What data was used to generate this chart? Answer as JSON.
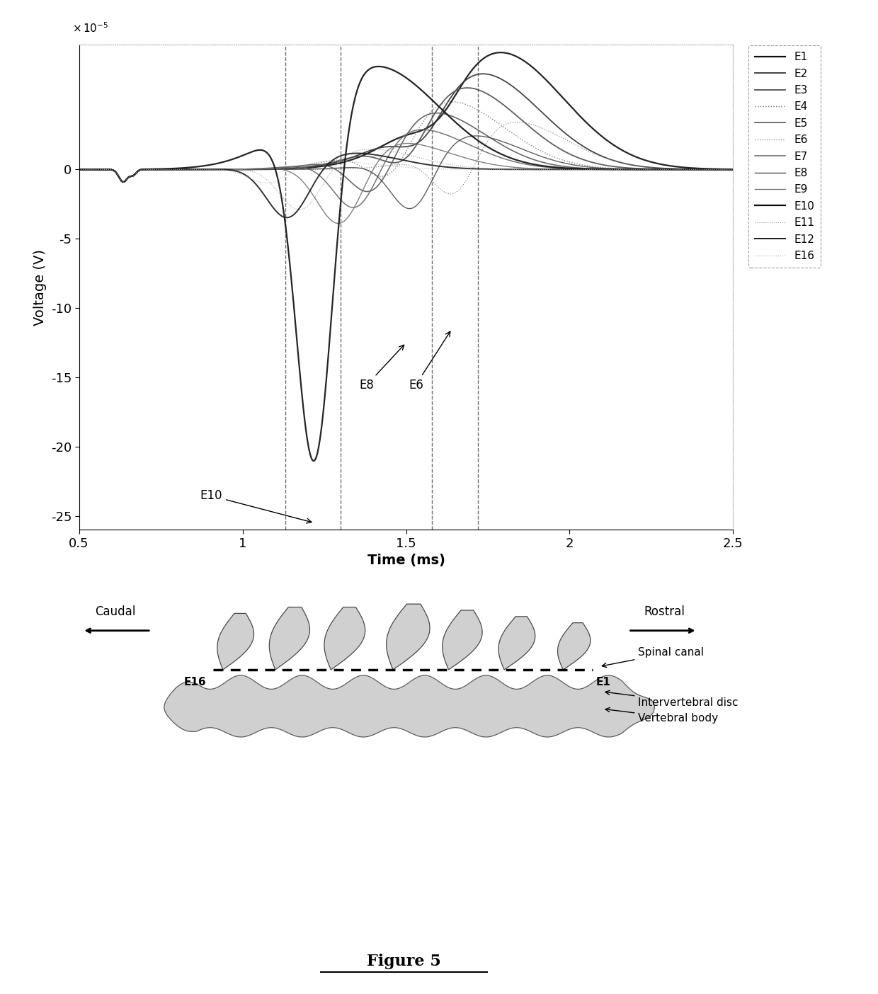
{
  "ylabel": "Voltage (V)",
  "xlabel": "Time (ms)",
  "xlim": [
    0.5,
    2.5
  ],
  "ylim_scaled": [
    -26,
    9
  ],
  "yticks": [
    0,
    -5,
    -10,
    -15,
    -20,
    -25
  ],
  "xticks": [
    0.5,
    1.0,
    1.5,
    2.0,
    2.5
  ],
  "xtick_labels": [
    "0.5",
    "1",
    "1.5",
    "2",
    "2.5"
  ],
  "dashed_vlines": [
    1.13,
    1.3,
    1.58,
    1.72
  ],
  "legend_labels": [
    "E1",
    "E2",
    "E3",
    "E4",
    "E5",
    "E6",
    "E7",
    "E8",
    "E9",
    "E10",
    "E11",
    "E12",
    "E16"
  ],
  "background_color": "#ffffff",
  "figure_title": "Figure 5"
}
